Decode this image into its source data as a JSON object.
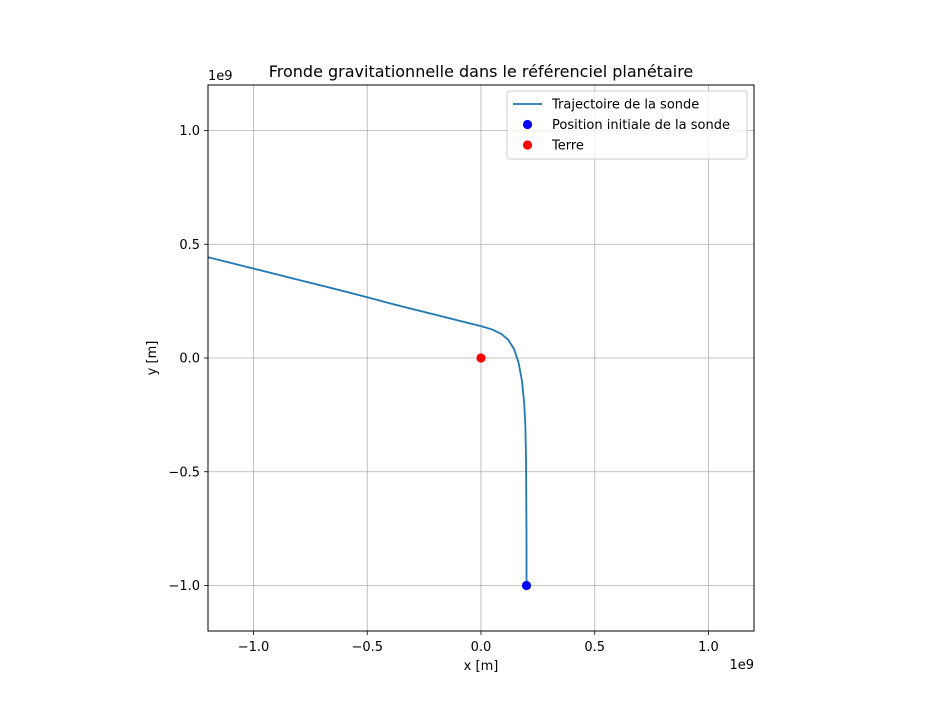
{
  "chart_data": {
    "type": "line",
    "title": "Fronde gravitationnelle dans le référenciel planétaire",
    "xlabel": "x [m]",
    "ylabel": "y [m]",
    "x_offset_label": "1e9",
    "y_offset_label": "1e9",
    "xlim": [
      -1.2,
      1.2
    ],
    "ylim": [
      -1.2,
      1.2
    ],
    "x_ticks": [
      -1.0,
      -0.5,
      0.0,
      0.5,
      1.0
    ],
    "x_tick_labels": [
      "−1.0",
      "−0.5",
      "0.0",
      "0.5",
      "1.0"
    ],
    "y_ticks": [
      -1.0,
      -0.5,
      0.0,
      0.5,
      1.0
    ],
    "y_tick_labels": [
      "−1.0",
      "−0.5",
      "0.0",
      "0.5",
      "1.0"
    ],
    "grid": true,
    "legend_position": "top-right",
    "series": [
      {
        "name": "Trajectoire de la sonde",
        "kind": "line",
        "color": "#1f77b4",
        "x": [
          0.2,
          0.2,
          0.199,
          0.198,
          0.195,
          0.19,
          0.18,
          0.165,
          0.145,
          0.12,
          0.09,
          0.05,
          0.0,
          -0.1,
          -0.2,
          -0.3,
          -0.4,
          -0.5,
          -0.6,
          -0.7,
          -0.8,
          -0.9,
          -1.0,
          -1.1,
          -1.2
        ],
        "y": [
          -1.0,
          -0.8,
          -0.6,
          -0.45,
          -0.3,
          -0.2,
          -0.1,
          -0.02,
          0.04,
          0.08,
          0.105,
          0.125,
          0.14,
          0.165,
          0.19,
          0.215,
          0.24,
          0.267,
          0.293,
          0.318,
          0.343,
          0.368,
          0.393,
          0.418,
          0.443
        ]
      },
      {
        "name": "Position initiale de la sonde",
        "kind": "point",
        "color": "#0000ff",
        "x": [
          0.2
        ],
        "y": [
          -1.0
        ]
      },
      {
        "name": "Terre",
        "kind": "point",
        "color": "#ff0000",
        "x": [
          0.0
        ],
        "y": [
          0.0
        ]
      }
    ]
  }
}
